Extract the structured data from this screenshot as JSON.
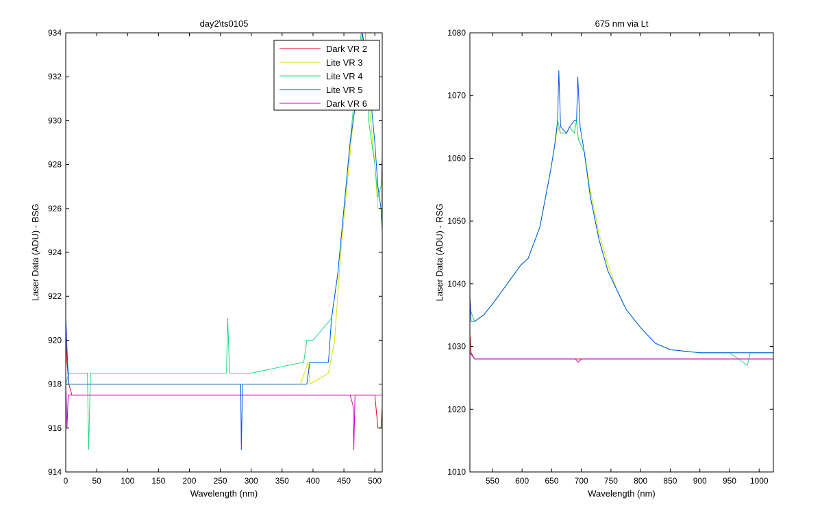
{
  "colors": {
    "background": "#ffffff",
    "axes": "#000000",
    "Dark VR 2": "#e8001c",
    "Lite VR 3": "#d4e600",
    "Lite VR 4": "#1ed884",
    "Lite VR 5": "#0055e6",
    "Dark VR 6": "#cc00cc"
  },
  "chart_data": [
    {
      "type": "line",
      "title": "day2\\ts0105",
      "xlabel": "Wavelength (nm)",
      "ylabel": "Laser Data (ADU) - BSG",
      "xlim": [
        0,
        512
      ],
      "ylim": [
        914,
        934
      ],
      "xticks": [
        0,
        50,
        100,
        150,
        200,
        250,
        300,
        350,
        400,
        450,
        500
      ],
      "yticks": [
        914,
        916,
        918,
        920,
        922,
        924,
        926,
        928,
        930,
        932,
        934
      ],
      "legend": {
        "position": "top-right",
        "entries": [
          "Dark VR 2",
          "Lite VR 3",
          "Lite VR 4",
          "Lite VR 5",
          "Dark VR 6"
        ]
      },
      "grid": false,
      "series": [
        {
          "name": "Dark VR 2",
          "x": [
            0,
            2,
            5,
            10,
            40,
            100,
            200,
            300,
            400,
            460,
            500,
            505,
            510,
            512
          ],
          "y": [
            920,
            919,
            918,
            917.5,
            917.5,
            917.5,
            917.5,
            917.5,
            917.5,
            917.5,
            917.5,
            916,
            916,
            917
          ]
        },
        {
          "name": "Lite VR 3",
          "x": [
            0,
            5,
            50,
            200,
            380,
            392,
            395,
            425,
            435,
            445,
            455,
            465,
            475,
            480,
            490,
            500,
            505,
            510,
            512
          ],
          "y": [
            918,
            918,
            918,
            918,
            918,
            919,
            918,
            918.5,
            920,
            924,
            927,
            930,
            932,
            934,
            931,
            928,
            926,
            926,
            928
          ]
        },
        {
          "name": "Lite VR 4",
          "x": [
            0,
            5,
            35,
            37,
            40,
            100,
            200,
            260,
            262,
            265,
            300,
            385,
            390,
            400,
            415,
            430,
            440,
            450,
            460,
            470,
            478,
            485,
            490,
            500,
            505,
            510,
            512
          ],
          "y": [
            918,
            918.5,
            918.5,
            915,
            918.5,
            918.5,
            918.5,
            918.5,
            921,
            918.5,
            918.5,
            919,
            920,
            920,
            920.5,
            921,
            923,
            926,
            929,
            932,
            934,
            934,
            930,
            928,
            926.5,
            927,
            928.5
          ]
        },
        {
          "name": "Lite VR 5",
          "x": [
            0,
            3,
            5,
            50,
            200,
            283,
            284,
            286,
            300,
            390,
            395,
            420,
            425,
            430,
            440,
            450,
            460,
            470,
            480,
            490,
            500,
            505,
            510,
            512
          ],
          "y": [
            921,
            919,
            918,
            918,
            918,
            918,
            915,
            918,
            918,
            918,
            919,
            919,
            919,
            921,
            923,
            926,
            929,
            931,
            934,
            932,
            929,
            927,
            926,
            925
          ]
        },
        {
          "name": "Dark VR 6",
          "x": [
            0,
            2,
            4,
            10,
            100,
            200,
            300,
            400,
            460,
            465,
            466,
            468,
            470,
            480,
            500,
            512
          ],
          "y": [
            918,
            916,
            917.5,
            917.5,
            917.5,
            917.5,
            917.5,
            917.5,
            917.5,
            917,
            915,
            917.5,
            917.5,
            917.5,
            917.5,
            917.5
          ]
        }
      ]
    },
    {
      "type": "line",
      "title": "675 nm via Lt",
      "xlabel": "Wavelength (nm)",
      "ylabel": "Laser Data (ADU) - RSG",
      "xlim": [
        512,
        1024
      ],
      "ylim": [
        1010,
        1080
      ],
      "xticks": [
        550,
        600,
        650,
        700,
        750,
        800,
        850,
        900,
        950,
        1000
      ],
      "yticks": [
        1010,
        1020,
        1030,
        1040,
        1050,
        1060,
        1070,
        1080
      ],
      "grid": false,
      "series": [
        {
          "name": "Dark VR 2",
          "x": [
            512,
            514,
            520,
            600,
            700,
            800,
            900,
            1000,
            1024
          ],
          "y": [
            1032,
            1029,
            1028,
            1028,
            1028,
            1028,
            1028,
            1028,
            1028
          ]
        },
        {
          "name": "Lite VR 3",
          "x": [
            512,
            520,
            535,
            552,
            598,
            610,
            630,
            648,
            655,
            660,
            665,
            675,
            680,
            688,
            692,
            695,
            705,
            715,
            730,
            745,
            760,
            775,
            800,
            825,
            850,
            900,
            950,
            1000,
            1024
          ],
          "y": [
            1036,
            1034,
            1035,
            1037,
            1043,
            1044,
            1049,
            1058,
            1062,
            1065,
            1064,
            1064,
            1065,
            1064,
            1066,
            1063,
            1061,
            1055,
            1048,
            1043,
            1039,
            1036,
            1033,
            1030.5,
            1029.5,
            1029,
            1029,
            1029,
            1029
          ]
        },
        {
          "name": "Lite VR 4",
          "x": [
            512,
            520,
            535,
            552,
            598,
            610,
            630,
            648,
            655,
            660,
            665,
            675,
            680,
            688,
            692,
            695,
            705,
            715,
            730,
            745,
            760,
            775,
            800,
            825,
            850,
            900,
            950,
            980,
            985,
            1000,
            1024
          ],
          "y": [
            1036,
            1034,
            1035,
            1037,
            1043,
            1044,
            1049,
            1058,
            1062,
            1066,
            1064,
            1064,
            1065,
            1064,
            1066,
            1063,
            1061,
            1054,
            1047,
            1042,
            1039,
            1036,
            1033,
            1030.5,
            1029.5,
            1029,
            1029,
            1027,
            1029,
            1029,
            1029
          ]
        },
        {
          "name": "Lite VR 5",
          "x": [
            512,
            514,
            520,
            535,
            552,
            598,
            610,
            630,
            648,
            655,
            660,
            662,
            665,
            675,
            680,
            688,
            692,
            694,
            698,
            705,
            715,
            730,
            745,
            760,
            775,
            800,
            825,
            850,
            900,
            950,
            1000,
            1024
          ],
          "y": [
            1038,
            1034,
            1034,
            1035,
            1037,
            1043,
            1044,
            1049,
            1058,
            1062,
            1066,
            1074,
            1065,
            1064,
            1065,
            1066,
            1066,
            1073,
            1065,
            1061,
            1054,
            1047,
            1042,
            1039,
            1036,
            1033,
            1030.5,
            1029.5,
            1029,
            1029,
            1029,
            1029
          ]
        },
        {
          "name": "Dark VR 6",
          "x": [
            512,
            520,
            555,
            690,
            695,
            700,
            710,
            740,
            785,
            835,
            885,
            910,
            1024
          ],
          "y": [
            1029,
            1028,
            1028,
            1028,
            1027.5,
            1028,
            1028,
            1028,
            1028,
            1028,
            1028,
            1028,
            1028
          ]
        }
      ]
    }
  ]
}
